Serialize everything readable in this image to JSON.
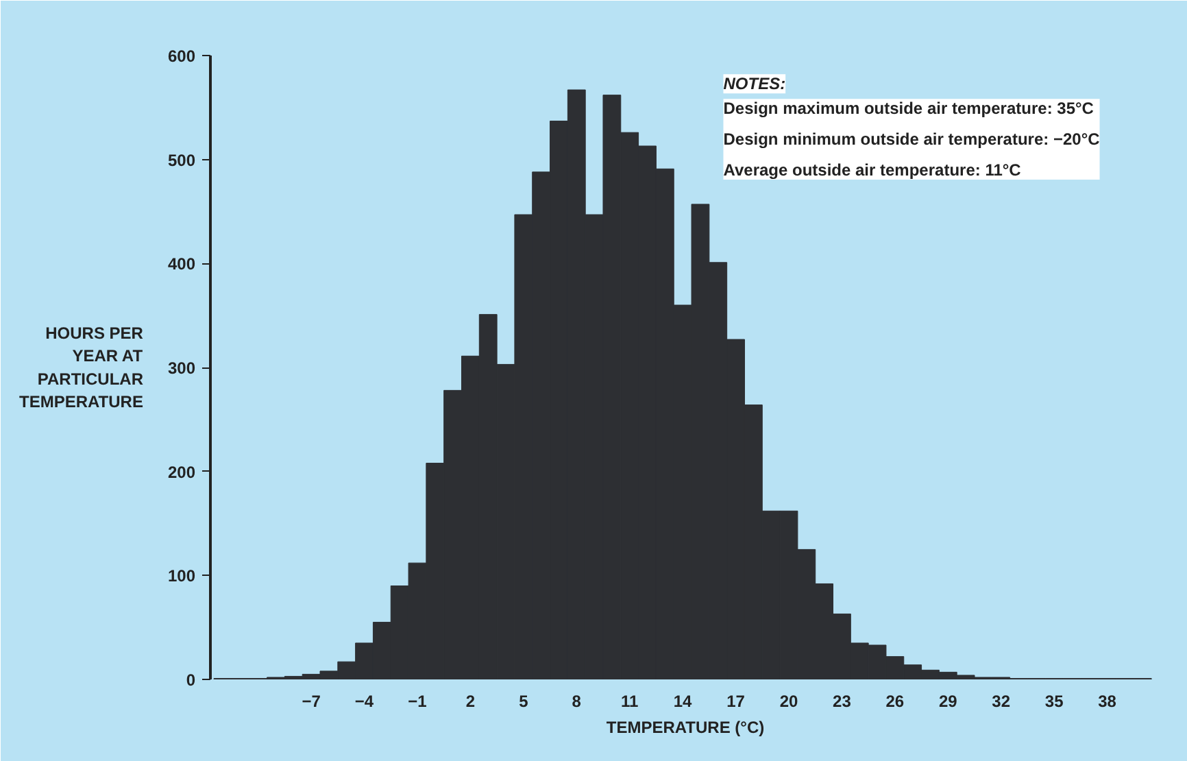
{
  "chart_data": {
    "type": "histogram",
    "xlabel": "TEMPERATURE (°C)",
    "ylabel": "HOURS PER YEAR AT PARTICULAR TEMPERATURE",
    "bins": [
      -12.5,
      -11.5,
      -10.5,
      -9.5,
      -8.5,
      -7.5,
      -6.5,
      -5.5,
      -4.5,
      -3.5,
      -2.5,
      -1.5,
      -0.5,
      0.5,
      1.5,
      2.5,
      3.5,
      4.5,
      5.5,
      6.5,
      7.5,
      8.5,
      9.5,
      10.5,
      11.5,
      12.5,
      13.5,
      14.5,
      15.5,
      16.5,
      17.5,
      18.5,
      19.5,
      20.5,
      21.5,
      22.5,
      23.5,
      24.5,
      25.5,
      26.5,
      27.5,
      28.5,
      29.5,
      30.5,
      31.5,
      32.5,
      33.5,
      34.5,
      35.5,
      36.5,
      37.5,
      38.5,
      39.5,
      40.5
    ],
    "values": [
      1,
      1,
      1,
      2,
      3,
      5,
      8,
      17,
      35,
      55,
      90,
      112,
      208,
      278,
      311,
      351,
      303,
      447,
      488,
      537,
      567,
      447,
      562,
      526,
      513,
      491,
      360,
      457,
      401,
      327,
      264,
      162,
      162,
      125,
      92,
      63,
      35,
      33,
      22,
      14,
      9,
      7,
      4,
      2,
      2,
      1,
      1,
      1,
      1,
      1,
      1,
      1,
      1
    ],
    "color": "#2d2f33",
    "xlim": [
      -12.7,
      41
    ],
    "ylim": [
      0,
      600
    ],
    "xticks": [
      -7,
      -4,
      -1,
      2,
      5,
      8,
      11,
      14,
      17,
      20,
      23,
      26,
      29,
      32,
      35,
      38
    ],
    "yticks": [
      0,
      100,
      200,
      300,
      400,
      500,
      600
    ],
    "grid": false,
    "annotations": [
      "NOTES:",
      "Design maximum outside air temperature: 35°C",
      "Design minimum outside air temperature: −20°C",
      "Average outside air temperature: 11°C"
    ]
  }
}
